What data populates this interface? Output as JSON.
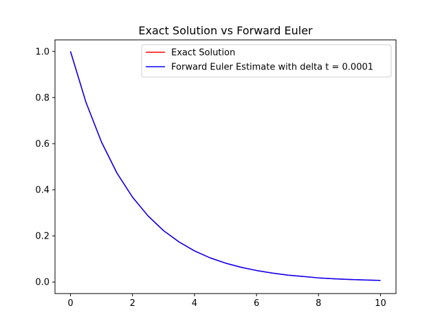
{
  "chart_data": {
    "type": "line",
    "title": "Exact Solution vs Forward Euler",
    "xlabel": "",
    "ylabel": "",
    "xlim": [
      -0.5,
      10.5
    ],
    "ylim": [
      -0.05,
      1.05
    ],
    "x_ticks": [
      "0",
      "2",
      "4",
      "6",
      "8",
      "10"
    ],
    "y_ticks": [
      "0.0",
      "0.2",
      "0.4",
      "0.6",
      "0.8",
      "1.0"
    ],
    "grid": false,
    "legend_position": "top-right",
    "x": [
      0,
      0.5,
      1,
      1.5,
      2,
      2.5,
      3,
      3.5,
      4,
      4.5,
      5,
      5.5,
      6,
      6.5,
      7,
      7.5,
      8,
      8.5,
      9,
      9.5,
      10
    ],
    "series": [
      {
        "name": "Exact Solution",
        "color": "#ff0000",
        "values": [
          1.0,
          0.779,
          0.607,
          0.472,
          0.368,
          0.287,
          0.223,
          0.174,
          0.135,
          0.105,
          0.082,
          0.064,
          0.05,
          0.039,
          0.03,
          0.024,
          0.018,
          0.014,
          0.011,
          0.009,
          0.007
        ]
      },
      {
        "name": "Forward Euler Estimate with delta t = 0.0001",
        "color": "#0000ff",
        "values": [
          1.0,
          0.779,
          0.607,
          0.472,
          0.368,
          0.287,
          0.223,
          0.174,
          0.135,
          0.105,
          0.082,
          0.064,
          0.05,
          0.039,
          0.03,
          0.024,
          0.018,
          0.014,
          0.011,
          0.009,
          0.007
        ]
      }
    ]
  }
}
